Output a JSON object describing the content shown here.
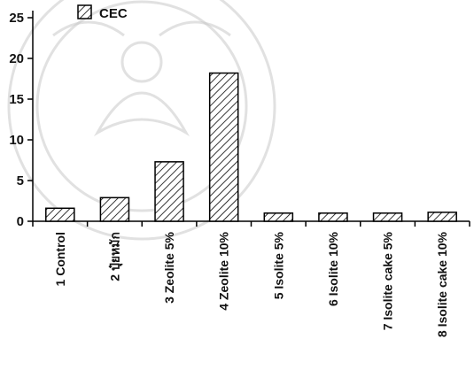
{
  "chart_data": {
    "type": "bar",
    "categories": [
      "1 Control",
      "2 ปุ๋ยหมัก",
      "3 Zeolite 5%",
      "4 Zeolite 10%",
      "5 Isolite 5%",
      "6 Isolite 10%",
      "7 Isolite cake 5%",
      "8 Isolite cake 10%"
    ],
    "series": [
      {
        "name": "CEC",
        "values": [
          1.6,
          2.9,
          7.3,
          18.2,
          1.0,
          1.0,
          1.0,
          1.1
        ]
      }
    ],
    "y_tick_labels": [
      "0",
      "5",
      "10",
      "15",
      "20",
      "25"
    ],
    "y_ticks": [
      0,
      5,
      10,
      15,
      20,
      25
    ],
    "ylim": [
      0,
      25
    ],
    "grid": false,
    "legend_position": "top-left",
    "bar_pattern": "diagonal-hatch",
    "bar_color": "#000000"
  }
}
